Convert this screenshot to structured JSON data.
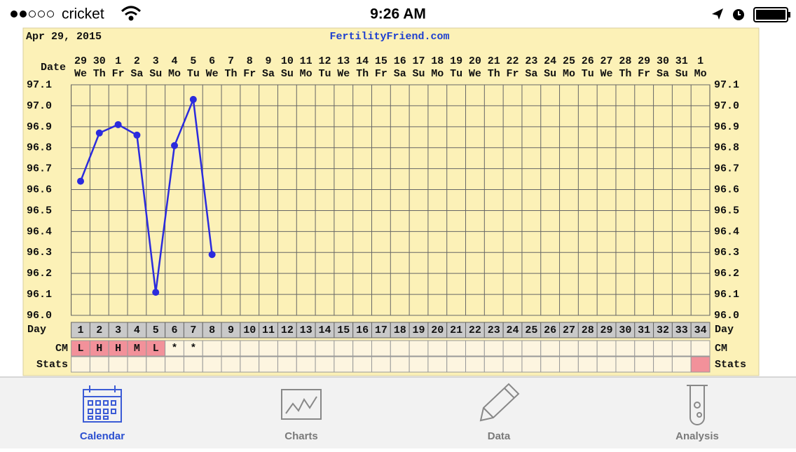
{
  "status_bar": {
    "carrier": "cricket",
    "time": "9:26 AM"
  },
  "chart_data": {
    "type": "line",
    "date": "Apr 29, 2015",
    "site": "FertilityFriend.com",
    "date_label": "Date",
    "day_label": "Day",
    "cm_label": "CM",
    "stats_label": "Stats",
    "dates": [
      29,
      30,
      1,
      2,
      3,
      4,
      5,
      6,
      7,
      8,
      9,
      10,
      11,
      12,
      13,
      14,
      15,
      16,
      17,
      18,
      19,
      20,
      21,
      22,
      23,
      24,
      25,
      26,
      27,
      28,
      29,
      30,
      31,
      1
    ],
    "weekdays": [
      "We",
      "Th",
      "Fr",
      "Sa",
      "Su",
      "Mo",
      "Tu",
      "We",
      "Th",
      "Fr",
      "Sa",
      "Su",
      "Mo",
      "Tu",
      "We",
      "Th",
      "Fr",
      "Sa",
      "Su",
      "Mo",
      "Tu",
      "We",
      "Th",
      "Fr",
      "Sa",
      "Su",
      "Mo",
      "Tu",
      "We",
      "Th",
      "Fr",
      "Sa",
      "Su",
      "Mo"
    ],
    "categories": [
      1,
      2,
      3,
      4,
      5,
      6,
      7,
      8,
      9,
      10,
      11,
      12,
      13,
      14,
      15,
      16,
      17,
      18,
      19,
      20,
      21,
      22,
      23,
      24,
      25,
      26,
      27,
      28,
      29,
      30,
      31,
      32,
      33,
      34
    ],
    "series": [
      {
        "color": "#2b2bdd",
        "values": [
          96.64,
          96.87,
          96.91,
          96.86,
          96.11,
          96.81,
          97.03,
          96.29,
          null,
          null,
          null,
          null,
          null,
          null,
          null,
          null,
          null,
          null,
          null,
          null,
          null,
          null,
          null,
          null,
          null,
          null,
          null,
          null,
          null,
          null,
          null,
          null,
          null,
          null
        ]
      }
    ],
    "cm": [
      "L",
      "H",
      "H",
      "M",
      "L",
      "*",
      "*"
    ],
    "ylim": [
      96,
      97.1
    ],
    "yticks": [
      {
        "value": 96,
        "label": "96.0"
      },
      96.1,
      96.2,
      96.3,
      96.4,
      96.5,
      96.6,
      96.7,
      96.8,
      96.9,
      {
        "value": 97,
        "label": "97.0"
      },
      97.1
    ],
    "grid": true
  },
  "tab_bar": {
    "tabs": [
      {
        "label": "Calendar"
      },
      {
        "label": "Charts"
      },
      {
        "label": "Data"
      },
      {
        "label": "Analysis"
      }
    ]
  }
}
